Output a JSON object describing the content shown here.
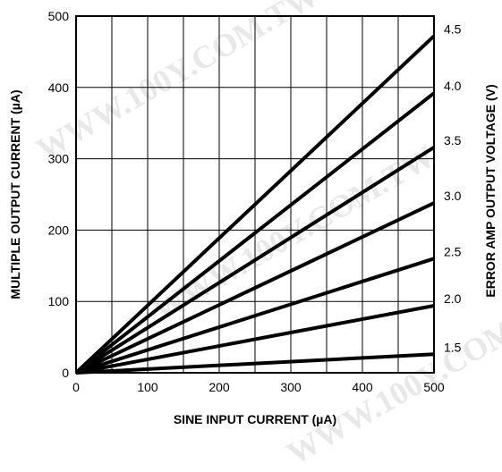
{
  "watermark": "WWW.100Y.COM.TW",
  "chart_data": {
    "type": "line",
    "title": "",
    "xlabel": "SINE INPUT CURRENT (µA)",
    "ylabel": "MULTIPLE OUTPUT CURRENT (µA)",
    "y2label": "ERROR AMP OUTPUT VOLTAGE (V)",
    "xlim": [
      0,
      500
    ],
    "ylim": [
      0,
      500
    ],
    "x_ticks": [
      0,
      100,
      200,
      300,
      400,
      500
    ],
    "x_tick_labels": [
      "0",
      "100",
      "200",
      "300",
      "400",
      "500"
    ],
    "y_ticks": [
      0,
      100,
      200,
      300,
      400,
      500
    ],
    "y_tick_labels": [
      "0",
      "100",
      "200",
      "300",
      "400",
      "500"
    ],
    "y2_tick_labels": [
      "1.5",
      "2.0",
      "2.5",
      "3.0",
      "3.5",
      "4.0",
      "4.5"
    ],
    "grid": true,
    "x_grid_step": 50,
    "y_grid_step": 100,
    "series": [
      {
        "label": "1.5",
        "x": [
          0,
          500
        ],
        "y": [
          0,
          26
        ]
      },
      {
        "label": "2.0",
        "x": [
          0,
          500
        ],
        "y": [
          0,
          94
        ]
      },
      {
        "label": "2.5",
        "x": [
          0,
          500
        ],
        "y": [
          0,
          160
        ]
      },
      {
        "label": "3.0",
        "x": [
          0,
          500
        ],
        "y": [
          0,
          238
        ]
      },
      {
        "label": "3.5",
        "x": [
          0,
          500
        ],
        "y": [
          0,
          316
        ]
      },
      {
        "label": "4.0",
        "x": [
          0,
          500
        ],
        "y": [
          0,
          392
        ]
      },
      {
        "label": "4.5",
        "x": [
          0,
          500
        ],
        "y": [
          0,
          472
        ]
      }
    ]
  }
}
